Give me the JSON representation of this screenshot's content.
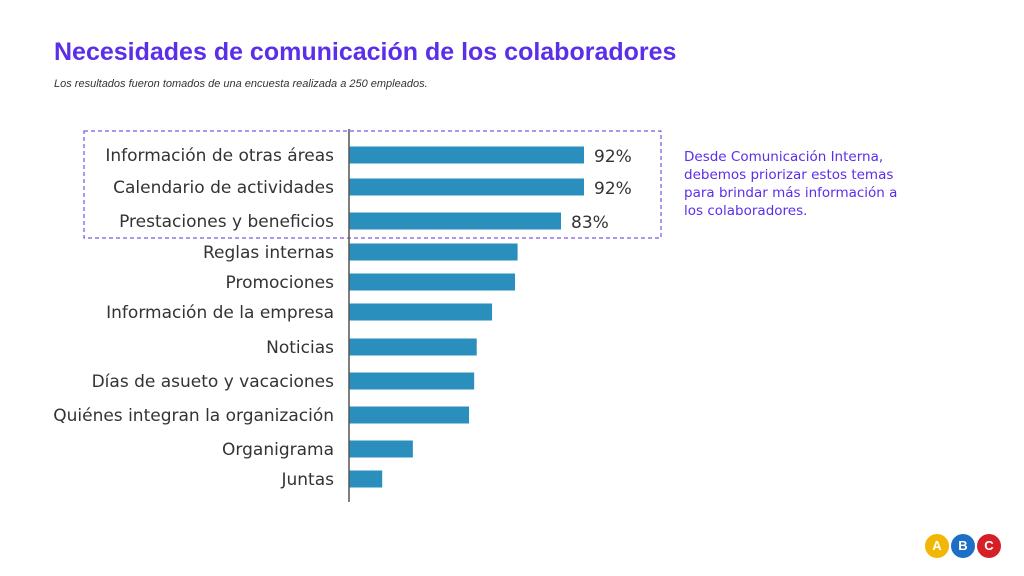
{
  "header": {
    "title": "Necesidades de comunicación de los colaboradores",
    "subtitle": "Los resultados fueron tomados de una encuesta realizada a 250 empleados."
  },
  "note": {
    "text": "Desde Comunicación Interna, debemos priorizar estos temas para brindar más información a los colaboradores."
  },
  "logo": {
    "letters": [
      "A",
      "B",
      "C"
    ],
    "colors": [
      "#f2b705",
      "#1c6fc4",
      "#d62027"
    ]
  },
  "colors": {
    "bar": "#2a8fbd",
    "accent": "#5b2ee8",
    "axis": "#555555"
  },
  "chart_data": {
    "type": "bar",
    "orientation": "horizontal",
    "categories": [
      "Información de otras áreas",
      "Calendario de actividades",
      "Prestaciones y beneficios",
      "Reglas internas",
      "Promociones",
      "Información de la empresa",
      "Noticias",
      "Días de asueto y vacaciones",
      "Quiénes integran la organización",
      "Organigrama",
      "Juntas"
    ],
    "values": [
      92,
      92,
      83,
      66,
      65,
      56,
      50,
      49,
      47,
      25,
      13
    ],
    "data_labels": [
      "92%",
      "92%",
      "83%",
      "",
      "",
      "",
      "",
      "",
      "",
      "",
      ""
    ],
    "xlim": [
      0,
      100
    ],
    "highlighted": [
      0,
      1,
      2
    ],
    "grid": false,
    "legend": "none"
  }
}
